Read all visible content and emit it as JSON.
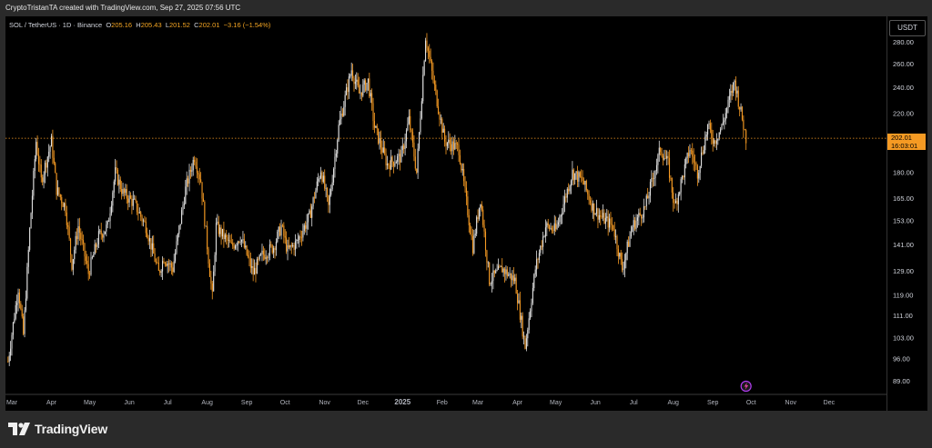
{
  "attribution": "CryptoTristanTA created with TradingView.com, Sep 27, 2025 07:56 UTC",
  "legend": {
    "symbol": "SOL / TetherUS · 1D · Binance",
    "open_label": "O",
    "open": "205.16",
    "high_label": "H",
    "high": "205.43",
    "low_label": "L",
    "low": "201.52",
    "close_label": "C",
    "close": "202.01",
    "change": "−3.16 (−1.54%)"
  },
  "currency": "USDT",
  "current_price": "202.01",
  "countdown": "16:03:01",
  "logo_text": "TradingView",
  "colors": {
    "up": "#e0e0e0",
    "down": "#f59a23",
    "accent": "#f59a23",
    "background": "#000000"
  },
  "icons": [
    "tradingview-logo-icon",
    "lightning-event-icon"
  ],
  "chart_data": {
    "type": "candlestick",
    "log_scale": true,
    "ylim": [
      85,
      305
    ],
    "grid": false,
    "y_ticks": [
      "89.00",
      "96.00",
      "103.00",
      "111.00",
      "119.00",
      "129.00",
      "141.00",
      "153.00",
      "165.00",
      "180.00",
      "202.01",
      "220.00",
      "240.00",
      "260.00",
      "280.00"
    ],
    "x_ticks": [
      "Mar",
      "Apr",
      "May",
      "Jun",
      "Jul",
      "Aug",
      "Sep",
      "Oct",
      "Nov",
      "Dec",
      "2025",
      "Feb",
      "Mar",
      "Apr",
      "May",
      "Jun",
      "Jul",
      "Aug",
      "Sep",
      "Oct",
      "Nov",
      "Dec"
    ],
    "horizontal_line": 202.01,
    "price_path": [
      {
        "x": "2024-02-27",
        "y": 95
      },
      {
        "x": "2024-03-06",
        "y": 122
      },
      {
        "x": "2024-03-10",
        "y": 104
      },
      {
        "x": "2024-03-15",
        "y": 148
      },
      {
        "x": "2024-03-20",
        "y": 200
      },
      {
        "x": "2024-03-24",
        "y": 175
      },
      {
        "x": "2024-04-01",
        "y": 200
      },
      {
        "x": "2024-04-05",
        "y": 170
      },
      {
        "x": "2024-04-12",
        "y": 160
      },
      {
        "x": "2024-04-17",
        "y": 132
      },
      {
        "x": "2024-04-22",
        "y": 150
      },
      {
        "x": "2024-04-30",
        "y": 128
      },
      {
        "x": "2024-05-08",
        "y": 145
      },
      {
        "x": "2024-05-15",
        "y": 150
      },
      {
        "x": "2024-05-21",
        "y": 180
      },
      {
        "x": "2024-05-27",
        "y": 168
      },
      {
        "x": "2024-06-05",
        "y": 162
      },
      {
        "x": "2024-06-14",
        "y": 150
      },
      {
        "x": "2024-06-24",
        "y": 128
      },
      {
        "x": "2024-06-28",
        "y": 135
      },
      {
        "x": "2024-07-05",
        "y": 130
      },
      {
        "x": "2024-07-15",
        "y": 170
      },
      {
        "x": "2024-07-22",
        "y": 190
      },
      {
        "x": "2024-07-27",
        "y": 175
      },
      {
        "x": "2024-08-05",
        "y": 118
      },
      {
        "x": "2024-08-08",
        "y": 150
      },
      {
        "x": "2024-08-20",
        "y": 140
      },
      {
        "x": "2024-08-27",
        "y": 145
      },
      {
        "x": "2024-09-06",
        "y": 128
      },
      {
        "x": "2024-09-13",
        "y": 136
      },
      {
        "x": "2024-09-22",
        "y": 140
      },
      {
        "x": "2024-09-28",
        "y": 150
      },
      {
        "x": "2024-10-03",
        "y": 138
      },
      {
        "x": "2024-10-10",
        "y": 142
      },
      {
        "x": "2024-10-20",
        "y": 155
      },
      {
        "x": "2024-10-29",
        "y": 182
      },
      {
        "x": "2024-11-04",
        "y": 160
      },
      {
        "x": "2024-11-12",
        "y": 210
      },
      {
        "x": "2024-11-22",
        "y": 255
      },
      {
        "x": "2024-11-28",
        "y": 235
      },
      {
        "x": "2024-12-05",
        "y": 245
      },
      {
        "x": "2024-12-10",
        "y": 210
      },
      {
        "x": "2024-12-20",
        "y": 185
      },
      {
        "x": "2024-12-31",
        "y": 190
      },
      {
        "x": "2025-01-06",
        "y": 215
      },
      {
        "x": "2025-01-12",
        "y": 180
      },
      {
        "x": "2025-01-19",
        "y": 285
      },
      {
        "x": "2025-01-26",
        "y": 240
      },
      {
        "x": "2025-02-03",
        "y": 200
      },
      {
        "x": "2025-02-14",
        "y": 195
      },
      {
        "x": "2025-02-25",
        "y": 140
      },
      {
        "x": "2025-03-03",
        "y": 165
      },
      {
        "x": "2025-03-10",
        "y": 125
      },
      {
        "x": "2025-03-20",
        "y": 130
      },
      {
        "x": "2025-03-30",
        "y": 125
      },
      {
        "x": "2025-04-07",
        "y": 100
      },
      {
        "x": "2025-04-15",
        "y": 130
      },
      {
        "x": "2025-04-23",
        "y": 150
      },
      {
        "x": "2025-05-01",
        "y": 148
      },
      {
        "x": "2025-05-14",
        "y": 180
      },
      {
        "x": "2025-05-22",
        "y": 175
      },
      {
        "x": "2025-05-30",
        "y": 160
      },
      {
        "x": "2025-06-05",
        "y": 155
      },
      {
        "x": "2025-06-15",
        "y": 150
      },
      {
        "x": "2025-06-22",
        "y": 130
      },
      {
        "x": "2025-06-30",
        "y": 150
      },
      {
        "x": "2025-07-10",
        "y": 160
      },
      {
        "x": "2025-07-22",
        "y": 195
      },
      {
        "x": "2025-07-28",
        "y": 185
      },
      {
        "x": "2025-08-02",
        "y": 160
      },
      {
        "x": "2025-08-14",
        "y": 195
      },
      {
        "x": "2025-08-20",
        "y": 180
      },
      {
        "x": "2025-08-28",
        "y": 210
      },
      {
        "x": "2025-09-02",
        "y": 200
      },
      {
        "x": "2025-09-08",
        "y": 210
      },
      {
        "x": "2025-09-18",
        "y": 245
      },
      {
        "x": "2025-09-22",
        "y": 225
      },
      {
        "x": "2025-09-27",
        "y": 202
      }
    ]
  }
}
